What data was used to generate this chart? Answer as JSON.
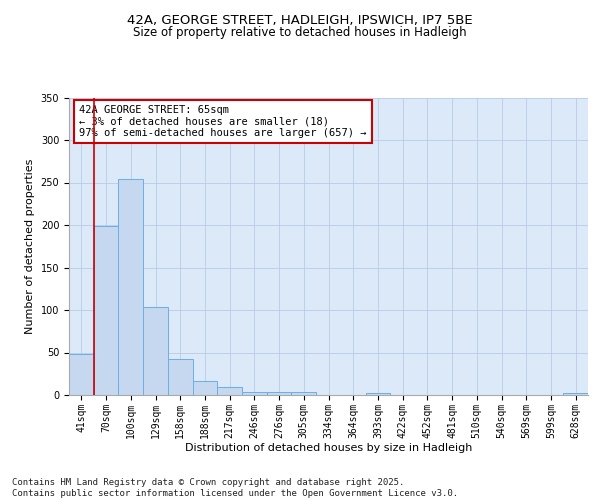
{
  "title1": "42A, GEORGE STREET, HADLEIGH, IPSWICH, IP7 5BE",
  "title2": "Size of property relative to detached houses in Hadleigh",
  "xlabel": "Distribution of detached houses by size in Hadleigh",
  "ylabel": "Number of detached properties",
  "categories": [
    "41sqm",
    "70sqm",
    "100sqm",
    "129sqm",
    "158sqm",
    "188sqm",
    "217sqm",
    "246sqm",
    "276sqm",
    "305sqm",
    "334sqm",
    "364sqm",
    "393sqm",
    "422sqm",
    "452sqm",
    "481sqm",
    "510sqm",
    "540sqm",
    "569sqm",
    "599sqm",
    "628sqm"
  ],
  "values": [
    48,
    199,
    254,
    104,
    42,
    17,
    10,
    4,
    3,
    3,
    0,
    0,
    2,
    0,
    0,
    0,
    0,
    0,
    0,
    0,
    2
  ],
  "bar_color": "#c5d8f0",
  "bar_edge_color": "#6aaee8",
  "grid_color": "#b8cce4",
  "bg_color": "#dce9f8",
  "annotation_box_color": "#cc0000",
  "annotation_text": "42A GEORGE STREET: 65sqm\n← 3% of detached houses are smaller (18)\n97% of semi-detached houses are larger (657) →",
  "vline_color": "#cc0000",
  "ylim": [
    0,
    350
  ],
  "yticks": [
    0,
    50,
    100,
    150,
    200,
    250,
    300,
    350
  ],
  "footer": "Contains HM Land Registry data © Crown copyright and database right 2025.\nContains public sector information licensed under the Open Government Licence v3.0.",
  "title1_fontsize": 9.5,
  "title2_fontsize": 8.5,
  "xlabel_fontsize": 8,
  "ylabel_fontsize": 8,
  "tick_fontsize": 7,
  "ann_fontsize": 7.5,
  "footer_fontsize": 6.5
}
